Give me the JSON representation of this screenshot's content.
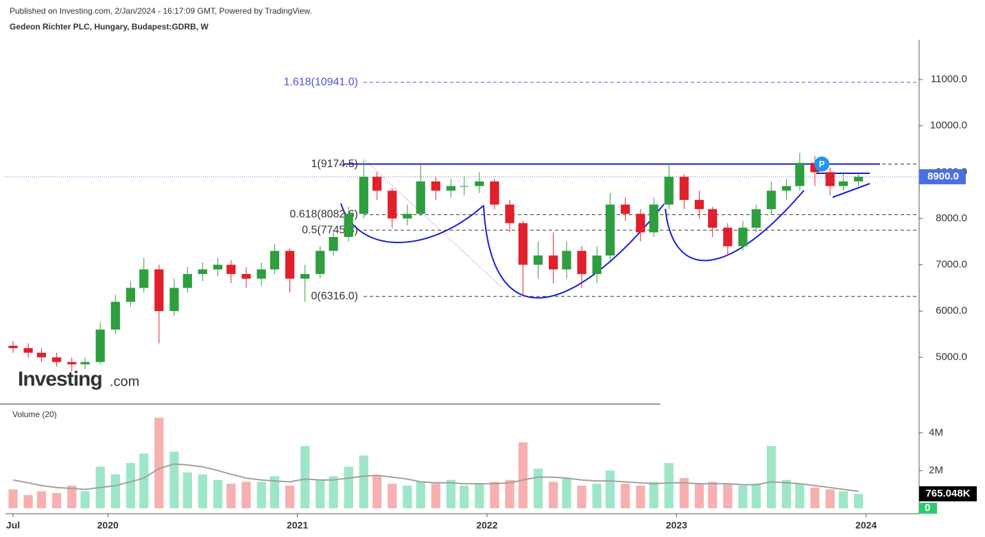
{
  "header": {
    "published": "Published on Investing.com, 2/Jan/2024 - 16:17:09 GMT, Powered by TradingView.",
    "symbol": "Gedeon Richter PLC, Hungary, Budapest:GDRB, W"
  },
  "logo": {
    "name": "Investing",
    "suffix": ".com"
  },
  "chart_data": {
    "type": "candlestick",
    "x": [
      2019.5,
      2019.58,
      2019.65,
      2019.73,
      2019.81,
      2019.88,
      2019.96,
      2020.04,
      2020.12,
      2020.19,
      2020.27,
      2020.35,
      2020.42,
      2020.5,
      2020.58,
      2020.65,
      2020.73,
      2020.81,
      2020.88,
      2020.96,
      2021.04,
      2021.12,
      2021.19,
      2021.27,
      2021.35,
      2021.42,
      2021.5,
      2021.58,
      2021.65,
      2021.73,
      2021.81,
      2021.88,
      2021.96,
      2022.04,
      2022.12,
      2022.19,
      2022.27,
      2022.35,
      2022.42,
      2022.5,
      2022.58,
      2022.65,
      2022.73,
      2022.81,
      2022.88,
      2022.96,
      2023.04,
      2023.12,
      2023.19,
      2023.27,
      2023.35,
      2023.42,
      2023.5,
      2023.58,
      2023.65,
      2023.73,
      2023.81,
      2023.88,
      2023.96
    ],
    "open": [
      5250,
      5200,
      5100,
      5000,
      4900,
      4850,
      4900,
      5600,
      6200,
      6500,
      6900,
      6000,
      6500,
      6800,
      6900,
      7000,
      6800,
      6700,
      6900,
      7300,
      6700,
      6800,
      7300,
      7600,
      8100,
      8900,
      8600,
      8000,
      8100,
      8800,
      8600,
      8700,
      8700,
      8800,
      8300,
      7900,
      7000,
      7200,
      6900,
      7300,
      6800,
      7200,
      8300,
      8100,
      7700,
      8300,
      8900,
      8400,
      8200,
      7800,
      7400,
      7800,
      8200,
      8600,
      8700,
      9200,
      9000,
      8700,
      8800
    ],
    "high": [
      5350,
      5300,
      5200,
      5100,
      5000,
      5000,
      5750,
      6350,
      6650,
      7150,
      7000,
      6700,
      6950,
      7050,
      7150,
      7100,
      6950,
      7050,
      7450,
      7350,
      7000,
      7400,
      7750,
      8250,
      9250,
      9000,
      8650,
      8300,
      9150,
      8900,
      8850,
      8900,
      9000,
      8850,
      8400,
      7950,
      7500,
      7700,
      7500,
      7400,
      7400,
      8550,
      8450,
      8200,
      8450,
      9174,
      8950,
      8600,
      8250,
      7900,
      7950,
      8300,
      8800,
      8850,
      9420,
      9350,
      9100,
      9000,
      9000
    ],
    "low": [
      5100,
      5000,
      4900,
      4800,
      4700,
      4750,
      4850,
      5500,
      6100,
      6400,
      5300,
      5900,
      6400,
      6650,
      6750,
      6600,
      6500,
      6550,
      6800,
      6400,
      6200,
      6700,
      7200,
      7500,
      8000,
      8400,
      7800,
      7850,
      8050,
      8400,
      8450,
      8500,
      8550,
      8200,
      7700,
      6316,
      6700,
      6600,
      6700,
      6500,
      6600,
      7100,
      7950,
      7500,
      7600,
      8200,
      8200,
      8000,
      7600,
      7200,
      7300,
      7700,
      8100,
      8400,
      8600,
      8700,
      8500,
      8600,
      8700
    ],
    "close": [
      5200,
      5100,
      5000,
      4900,
      4850,
      4900,
      5600,
      6200,
      6500,
      6900,
      6000,
      6500,
      6800,
      6900,
      7000,
      6800,
      6700,
      6900,
      7300,
      6700,
      6800,
      7300,
      7600,
      8100,
      8900,
      8600,
      8000,
      8100,
      8800,
      8600,
      8700,
      8700,
      8800,
      8300,
      7900,
      7000,
      7200,
      6900,
      7300,
      6800,
      7200,
      8300,
      8100,
      7700,
      8300,
      8900,
      8400,
      8200,
      7800,
      7400,
      7800,
      8200,
      8600,
      8700,
      9200,
      9000,
      8700,
      8800,
      8900
    ],
    "up_color": "#2e9e3e",
    "down_color": "#e0202a",
    "xlim": [
      2019.46,
      2024.28
    ],
    "xticks": [
      {
        "value": 2019.5,
        "label": "Jul"
      },
      2020,
      2021,
      2022,
      2023,
      2024
    ],
    "ylim": [
      4020,
      11860
    ],
    "yticks": [
      {
        "value": 5000,
        "label": "5000.0"
      },
      {
        "value": 6000,
        "label": "6000.0"
      },
      {
        "value": 7000,
        "label": "7000.0"
      },
      {
        "value": 8000,
        "label": "8000.0"
      },
      {
        "value": 9000,
        "label": "9000.0"
      },
      {
        "value": 10000,
        "label": "10000.0"
      },
      {
        "value": 11000,
        "label": "11000.0"
      }
    ],
    "last_price": {
      "value": 8900,
      "label": "8900.0",
      "color": "#4a6fe0"
    },
    "resistance": 9174.5,
    "fib_levels": [
      {
        "label": "1.618(10941.0)",
        "value": 10941
      },
      {
        "label": "1(9174.5)",
        "value": 9174.5
      },
      {
        "label": "0.618(8082.6)",
        "value": 8082.6
      },
      {
        "label": "0.5(7745.3)",
        "value": 7745.3
      },
      {
        "label": "0(6316.0)",
        "value": 6316
      }
    ],
    "volume": {
      "title": "Volume (20)",
      "values": [
        1000000,
        700000,
        900000,
        800000,
        1200000,
        900000,
        2200000,
        1800000,
        2400000,
        2900000,
        4800000,
        3000000,
        1900000,
        1800000,
        1500000,
        1300000,
        1400000,
        1400000,
        1700000,
        1200000,
        3300000,
        1500000,
        1700000,
        2200000,
        2800000,
        1700000,
        1300000,
        1200000,
        1400000,
        1300000,
        1500000,
        1200000,
        1300000,
        1400000,
        1500000,
        3500000,
        2100000,
        1400000,
        1600000,
        1200000,
        1300000,
        2000000,
        1300000,
        1200000,
        1400000,
        2400000,
        1600000,
        1300000,
        1400000,
        1300000,
        1200000,
        1300000,
        3300000,
        1500000,
        1300000,
        1100000,
        1000000,
        900000,
        765048
      ],
      "ma": [
        1500000,
        1350000,
        1200000,
        1100000,
        1050000,
        1000000,
        1100000,
        1200000,
        1400000,
        1600000,
        2100000,
        2350000,
        2300000,
        2200000,
        2000000,
        1800000,
        1600000,
        1500000,
        1450000,
        1400000,
        1550000,
        1500000,
        1500000,
        1600000,
        1700000,
        1750000,
        1650000,
        1550000,
        1400000,
        1350000,
        1350000,
        1300000,
        1300000,
        1300000,
        1350000,
        1500000,
        1650000,
        1650000,
        1600000,
        1500000,
        1450000,
        1450000,
        1400000,
        1350000,
        1300000,
        1350000,
        1350000,
        1300000,
        1300000,
        1300000,
        1250000,
        1250000,
        1400000,
        1350000,
        1300000,
        1200000,
        1100000,
        1000000,
        900000
      ],
      "ylim": [
        0,
        5450000
      ],
      "yticks": [
        {
          "value": 0,
          "label": "0"
        },
        {
          "value": 2000000,
          "label": "2M"
        },
        {
          "value": 4000000,
          "label": "4M"
        }
      ],
      "last_volume": {
        "value": 765048,
        "label": "765.048K"
      },
      "up_color": "#9ee6c8",
      "down_color": "#f7b0b0",
      "ma_color": "#a0a0a0"
    },
    "marker": "P"
  }
}
